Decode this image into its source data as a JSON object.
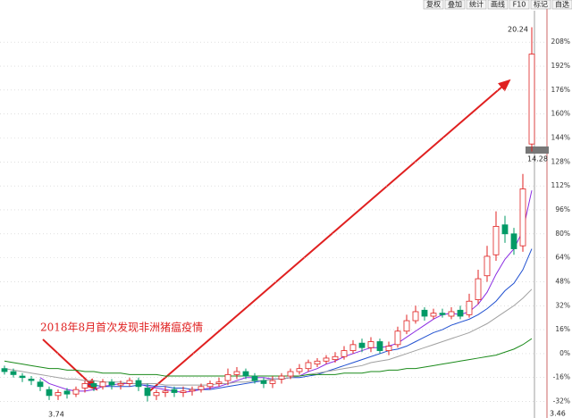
{
  "toolbar": [
    "复权",
    "叠加",
    "统计",
    "画线",
    "F10",
    "标记",
    "自选"
  ],
  "chart_data": {
    "type": "candlestick",
    "annotation": "2018年8月首次发现非洲猪瘟疫情",
    "price_labels": {
      "high": "20.24",
      "mark": "14.28",
      "low": "3.74",
      "right_low": "3.46"
    },
    "open": [
      -10,
      -12,
      -15,
      -17,
      -19,
      -24,
      -28,
      -25,
      -27,
      -23,
      -20,
      -22,
      -19,
      -21,
      -20,
      -18,
      -23,
      -28,
      -26,
      -24,
      -26,
      -25,
      -24,
      -22,
      -20,
      -18,
      -14,
      -12,
      -15,
      -18,
      -20,
      -17,
      -15,
      -12,
      -10,
      -7,
      -5,
      -4,
      -2,
      2,
      7,
      4,
      8,
      2,
      6,
      15,
      22,
      29,
      25,
      27,
      25,
      29,
      26,
      36,
      52,
      66,
      86,
      80,
      72,
      140
    ],
    "high": [
      -8,
      -10,
      -13,
      -15,
      -17,
      -22,
      -24,
      -23,
      -22,
      -18,
      -18,
      -17,
      -17,
      -18,
      -16,
      -16,
      -20,
      -24,
      -22,
      -22,
      -22,
      -22,
      -20,
      -18,
      -16,
      -10,
      -9,
      -10,
      -13,
      -16,
      -15,
      -13,
      -10,
      -7,
      -4,
      -3,
      -1,
      1,
      5,
      9,
      10,
      11,
      10,
      8,
      18,
      26,
      32,
      31,
      30,
      30,
      31,
      32,
      40,
      56,
      72,
      95,
      92,
      84,
      120,
      218
    ],
    "low": [
      -14,
      -16,
      -19,
      -21,
      -25,
      -31,
      -31,
      -30,
      -29,
      -26,
      -25,
      -24,
      -24,
      -24,
      -22,
      -25,
      -32,
      -31,
      -29,
      -29,
      -29,
      -28,
      -26,
      -24,
      -22,
      -21,
      -17,
      -17,
      -20,
      -23,
      -23,
      -20,
      -17,
      -14,
      -12,
      -9,
      -7,
      -6,
      -4,
      0,
      1,
      1,
      0,
      -1,
      4,
      13,
      20,
      22,
      23,
      24,
      23,
      23,
      24,
      33,
      48,
      62,
      74,
      66,
      68,
      135
    ],
    "close": [
      -12,
      -14,
      -16,
      -18,
      -22,
      -28,
      -26,
      -27,
      -24,
      -20,
      -22,
      -19,
      -21,
      -20,
      -18,
      -22,
      -28,
      -26,
      -25,
      -26,
      -25,
      -24,
      -22,
      -20,
      -19,
      -14,
      -12,
      -15,
      -18,
      -20,
      -18,
      -15,
      -12,
      -10,
      -6,
      -5,
      -3,
      -2,
      2,
      6,
      4,
      8,
      2,
      5,
      15,
      22,
      28,
      25,
      27,
      26,
      28,
      25,
      35,
      50,
      65,
      85,
      80,
      70,
      110,
      200
    ],
    "up_color": "#e02020",
    "down_color": "#009a66",
    "lines": [
      {
        "color": "#8a2be2",
        "values": [
          null,
          null,
          null,
          null,
          -16,
          -20,
          -22,
          -24,
          -25,
          -25,
          -24,
          -22,
          -21,
          -20,
          -20,
          -20,
          -22,
          -23,
          -24,
          -25,
          -26,
          -25,
          -24,
          -23,
          -22,
          -20,
          -18,
          -16,
          -16,
          -16,
          -17,
          -17,
          -16,
          -15,
          -12,
          -10,
          -7,
          -5,
          -2,
          0,
          2,
          4,
          4,
          5,
          7,
          11,
          15,
          19,
          23,
          26,
          27,
          26,
          28,
          33,
          41,
          53,
          63,
          70,
          82,
          109
        ]
      },
      {
        "color": "#2050d0",
        "values": [
          null,
          null,
          null,
          null,
          null,
          null,
          null,
          null,
          null,
          -20,
          -21,
          -22,
          -22,
          -22,
          -22,
          -21,
          -21,
          -22,
          -22,
          -23,
          -23,
          -24,
          -24,
          -24,
          -23,
          -22,
          -21,
          -20,
          -19,
          -18,
          -17,
          -17,
          -16,
          -16,
          -15,
          -14,
          -12,
          -10,
          -8,
          -6,
          -4,
          -2,
          0,
          2,
          3,
          5,
          8,
          11,
          14,
          16,
          19,
          21,
          23,
          26,
          30,
          35,
          42,
          47,
          56,
          70
        ]
      },
      {
        "color": "#a0a0a0",
        "values": [
          -10,
          -11,
          -12,
          -13,
          -14,
          -15,
          -16,
          -17,
          -17,
          -18,
          -18,
          -19,
          -19,
          -19,
          -20,
          -20,
          -20,
          -20,
          -21,
          -21,
          -21,
          -21,
          -21,
          -21,
          -20,
          -20,
          -19,
          -19,
          -18,
          -18,
          -17,
          -17,
          -16,
          -15,
          -14,
          -13,
          -12,
          -11,
          -10,
          -9,
          -8,
          -6,
          -5,
          -4,
          -2,
          0,
          2,
          4,
          6,
          8,
          10,
          12,
          14,
          17,
          20,
          24,
          28,
          32,
          37,
          43
        ]
      },
      {
        "color": "#1a8a1a",
        "values": [
          -5,
          -6,
          -7,
          -8,
          -9,
          -10,
          -10,
          -11,
          -11,
          -12,
          -12,
          -13,
          -13,
          -13,
          -14,
          -14,
          -14,
          -14,
          -15,
          -15,
          -15,
          -15,
          -15,
          -15,
          -15,
          -15,
          -15,
          -15,
          -15,
          -15,
          -15,
          -15,
          -15,
          -15,
          -14,
          -14,
          -14,
          -14,
          -13,
          -13,
          -13,
          -12,
          -12,
          -11,
          -11,
          -10,
          -10,
          -9,
          -8,
          -7,
          -6,
          -5,
          -4,
          -3,
          -2,
          -1,
          1,
          3,
          6,
          10
        ]
      }
    ],
    "ylim": [
      -43,
      229
    ],
    "yticks": [
      {
        "value": 208,
        "label": "208%"
      },
      {
        "value": 192,
        "label": "192%"
      },
      {
        "value": 176,
        "label": "176%"
      },
      {
        "value": 160,
        "label": "160%"
      },
      {
        "value": 144,
        "label": "144%"
      },
      {
        "value": 128,
        "label": "128%"
      },
      {
        "value": 112,
        "label": "112%"
      },
      {
        "value": 96,
        "label": "96%"
      },
      {
        "value": 80,
        "label": "80%"
      },
      {
        "value": 64,
        "label": "64%"
      },
      {
        "value": 48,
        "label": "48%"
      },
      {
        "value": 32,
        "label": "32%"
      },
      {
        "value": 16,
        "label": "16%"
      },
      {
        "value": 0,
        "label": "0%"
      },
      {
        "value": -16,
        "label": "-16%"
      },
      {
        "value": -32,
        "label": "-32%"
      }
    ],
    "grid": true
  }
}
